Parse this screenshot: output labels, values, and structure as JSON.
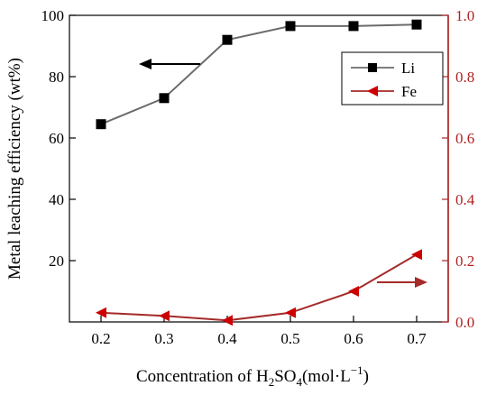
{
  "chart_data": {
    "type": "line",
    "x": [
      0.2,
      0.3,
      0.4,
      0.5,
      0.6,
      0.7
    ],
    "x_ticks": [
      "0.2",
      "0.3",
      "0.4",
      "0.5",
      "0.6",
      "0.7"
    ],
    "xlim": [
      0.15,
      0.75
    ],
    "xlabel": "Concentration of H2SO4(mol·L−1)",
    "xlabel_parts": {
      "pre": "Concentration of H",
      "sub1": "2",
      "mid": "SO",
      "sub2": "4",
      "unit": "(mol·L",
      "sup": "−1",
      "post": ")"
    },
    "ylabel_left": "Metal leaching efficiency (wt%)",
    "ylim_left": [
      0,
      100
    ],
    "y_ticks_left": [
      "20",
      "40",
      "60",
      "80",
      "100"
    ],
    "ylim_right": [
      0,
      1.0
    ],
    "y_ticks_right": [
      "0.0",
      "0.2",
      "0.4",
      "0.6",
      "0.8",
      "1.0"
    ],
    "series": [
      {
        "name": "Li",
        "axis": "left",
        "values": [
          64.5,
          73,
          92,
          96.5,
          96.5,
          97
        ],
        "line_color": "#6b6b6b",
        "marker_color": "#000000",
        "marker": "square"
      },
      {
        "name": "Fe",
        "axis": "right",
        "values": [
          0.03,
          0.02,
          0.005,
          0.03,
          0.1,
          0.22
        ],
        "line_color": "#a52a2a",
        "marker_color": "#cc0000",
        "marker": "triangle-left"
      }
    ],
    "right_axis_color": "#b22222",
    "grid": false,
    "legend_position": "top-right"
  }
}
